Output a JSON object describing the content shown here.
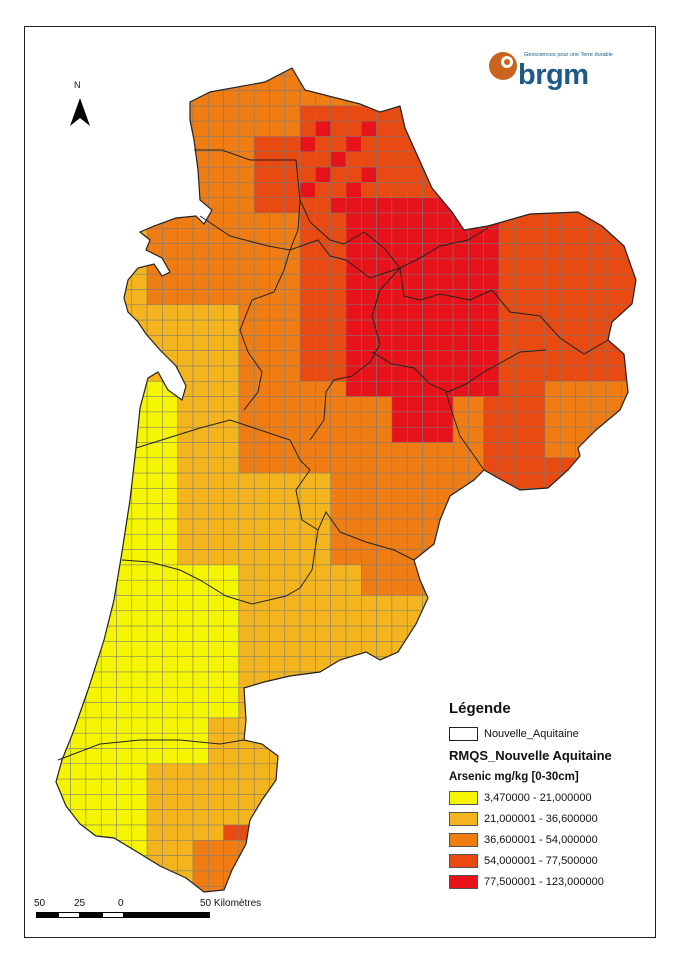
{
  "north_label": "N",
  "logo": {
    "name": "brgm",
    "tagline": "Géosciences pour une Terre durable",
    "text_color": "#1e5a86",
    "emblem_color": "#c8641e"
  },
  "legend": {
    "title": "Légende",
    "boundary_layer": "Nouvelle_Aquitaine",
    "data_layer": "RMQS_Nouvelle Aquitaine",
    "field": "Arsenic mg/kg [0-30cm]",
    "classes": [
      {
        "label": "3,470000 - 21,000000",
        "color": "#f5f500"
      },
      {
        "label": "21,000001 - 36,600000",
        "color": "#f3b41e"
      },
      {
        "label": "36,600001 - 54,000000",
        "color": "#f07d14"
      },
      {
        "label": "54,000001 - 77,500000",
        "color": "#e84a12"
      },
      {
        "label": "77,500001 - 123,000000",
        "color": "#e8121a"
      }
    ]
  },
  "scale": {
    "labels": [
      "50",
      "25",
      "0",
      "50 Kilomètres"
    ]
  }
}
